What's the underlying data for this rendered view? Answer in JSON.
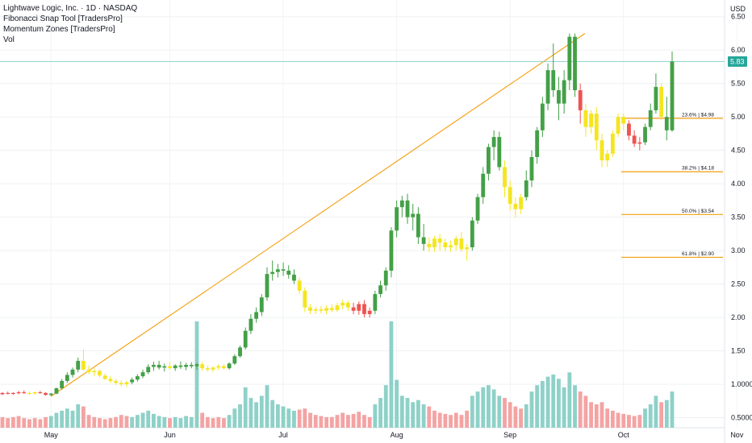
{
  "header": {
    "title": "Lightwave Logic, Inc. · 1D · NASDAQ",
    "indicators": [
      "Fibonacci Snap Tool [TradersPro]",
      "Momentum Zones [TradersPro]",
      "Vol"
    ]
  },
  "price_axis": {
    "currency": "USD"
  },
  "chart_data": {
    "type": "candlestick",
    "x_ticks": [
      "May",
      "Jun",
      "Jul",
      "Aug",
      "Sep",
      "Oct",
      "Nov"
    ],
    "y_ticks": [
      "6.50",
      "6.00",
      "5.50",
      "5.00",
      "4.50",
      "4.00",
      "3.50",
      "3.00",
      "2.50",
      "2.00",
      "1.50",
      "1.0000",
      "0.5000"
    ],
    "ylim": [
      0.35,
      6.75
    ],
    "last_price": "5.83",
    "fib_levels": [
      {
        "label": "23.6% | $4.98",
        "price": 4.98
      },
      {
        "label": "38.2% | $4.18",
        "price": 4.18
      },
      {
        "label": "50.0% | $3.54",
        "price": 3.54
      },
      {
        "label": "61.8% | $2.90",
        "price": 2.9
      }
    ],
    "trendline": {
      "from_price": 0.82,
      "to_price": 6.25
    },
    "candles": [
      [
        0.85,
        0.88,
        0.84,
        0.87,
        "r",
        0.1
      ],
      [
        0.87,
        0.89,
        0.85,
        0.86,
        "r",
        0.09
      ],
      [
        0.86,
        0.88,
        0.84,
        0.87,
        "r",
        0.1
      ],
      [
        0.87,
        0.9,
        0.85,
        0.88,
        "r",
        0.11
      ],
      [
        0.88,
        0.91,
        0.86,
        0.87,
        "r",
        0.09
      ],
      [
        0.87,
        0.89,
        0.84,
        0.86,
        "y",
        0.08
      ],
      [
        0.86,
        0.89,
        0.85,
        0.88,
        "y",
        0.09
      ],
      [
        0.88,
        0.9,
        0.86,
        0.87,
        "r",
        0.08
      ],
      [
        0.87,
        0.88,
        0.83,
        0.84,
        "r",
        0.1
      ],
      [
        0.84,
        0.87,
        0.82,
        0.86,
        "g",
        0.11
      ],
      [
        0.86,
        0.95,
        0.85,
        0.94,
        "g",
        0.14
      ],
      [
        0.94,
        1.08,
        0.92,
        1.05,
        "g",
        0.16
      ],
      [
        1.05,
        1.18,
        1.02,
        1.14,
        "g",
        0.18
      ],
      [
        1.14,
        1.25,
        1.1,
        1.22,
        "g",
        0.16
      ],
      [
        1.22,
        1.4,
        1.18,
        1.35,
        "g",
        0.22
      ],
      [
        1.35,
        1.52,
        1.2,
        1.22,
        "y",
        0.2
      ],
      [
        1.22,
        1.28,
        1.15,
        1.18,
        "y",
        0.12
      ],
      [
        1.18,
        1.24,
        1.12,
        1.2,
        "y",
        0.1
      ],
      [
        1.2,
        1.22,
        1.1,
        1.13,
        "y",
        0.09
      ],
      [
        1.13,
        1.16,
        1.06,
        1.08,
        "y",
        0.08
      ],
      [
        1.08,
        1.12,
        1.02,
        1.05,
        "y",
        0.09
      ],
      [
        1.05,
        1.08,
        0.99,
        1.02,
        "y",
        0.1
      ],
      [
        1.02,
        1.06,
        0.97,
        1.0,
        "y",
        0.12
      ],
      [
        1.0,
        1.05,
        0.96,
        1.03,
        "y",
        0.11
      ],
      [
        1.03,
        1.1,
        1.0,
        1.07,
        "g",
        0.1
      ],
      [
        1.07,
        1.15,
        1.04,
        1.12,
        "g",
        0.12
      ],
      [
        1.12,
        1.22,
        1.09,
        1.18,
        "g",
        0.14
      ],
      [
        1.18,
        1.3,
        1.15,
        1.26,
        "g",
        0.16
      ],
      [
        1.26,
        1.34,
        1.2,
        1.29,
        "g",
        0.13
      ],
      [
        1.29,
        1.35,
        1.22,
        1.25,
        "g",
        0.11
      ],
      [
        1.25,
        1.31,
        1.19,
        1.27,
        "g",
        0.1
      ],
      [
        1.27,
        1.33,
        1.22,
        1.24,
        "y",
        0.09
      ],
      [
        1.24,
        1.3,
        1.2,
        1.28,
        "g",
        0.1
      ],
      [
        1.28,
        1.34,
        1.23,
        1.26,
        "g",
        0.09
      ],
      [
        1.26,
        1.32,
        1.21,
        1.29,
        "g",
        0.11
      ],
      [
        1.29,
        1.33,
        1.24,
        1.27,
        "g",
        0.1
      ],
      [
        1.27,
        1.32,
        1.22,
        1.3,
        "g",
        1.0
      ],
      [
        1.3,
        1.34,
        1.2,
        1.24,
        "y",
        0.14
      ],
      [
        1.24,
        1.28,
        1.19,
        1.22,
        "y",
        0.1
      ],
      [
        1.22,
        1.27,
        1.18,
        1.25,
        "y",
        0.09
      ],
      [
        1.25,
        1.3,
        1.21,
        1.27,
        "y",
        0.1
      ],
      [
        1.27,
        1.3,
        1.22,
        1.24,
        "y",
        0.09
      ],
      [
        1.24,
        1.33,
        1.22,
        1.31,
        "g",
        0.12
      ],
      [
        1.31,
        1.45,
        1.29,
        1.42,
        "g",
        0.18
      ],
      [
        1.42,
        1.58,
        1.4,
        1.55,
        "g",
        0.22
      ],
      [
        1.55,
        1.85,
        1.52,
        1.8,
        "g",
        0.38
      ],
      [
        1.8,
        2.05,
        1.75,
        1.98,
        "g",
        0.28
      ],
      [
        1.98,
        2.15,
        1.92,
        2.08,
        "g",
        0.24
      ],
      [
        2.08,
        2.35,
        2.02,
        2.3,
        "g",
        0.3
      ],
      [
        2.3,
        2.75,
        2.25,
        2.65,
        "g",
        0.4
      ],
      [
        2.65,
        2.85,
        2.55,
        2.68,
        "g",
        0.26
      ],
      [
        2.68,
        2.8,
        2.6,
        2.72,
        "g",
        0.22
      ],
      [
        2.72,
        2.82,
        2.62,
        2.7,
        "g",
        0.2
      ],
      [
        2.7,
        2.78,
        2.58,
        2.64,
        "g",
        0.18
      ],
      [
        2.64,
        2.72,
        2.5,
        2.55,
        "g",
        0.16
      ],
      [
        2.55,
        2.6,
        2.35,
        2.4,
        "y",
        0.17
      ],
      [
        2.4,
        2.45,
        2.08,
        2.15,
        "y",
        0.18
      ],
      [
        2.15,
        2.2,
        2.05,
        2.1,
        "y",
        0.14
      ],
      [
        2.1,
        2.16,
        2.05,
        2.12,
        "y",
        0.12
      ],
      [
        2.12,
        2.17,
        2.06,
        2.1,
        "y",
        0.11
      ],
      [
        2.1,
        2.18,
        2.05,
        2.14,
        "y",
        0.1
      ],
      [
        2.14,
        2.2,
        2.08,
        2.11,
        "y",
        0.1
      ],
      [
        2.11,
        2.22,
        2.08,
        2.18,
        "y",
        0.12
      ],
      [
        2.18,
        2.26,
        2.12,
        2.22,
        "y",
        0.14
      ],
      [
        2.22,
        2.25,
        2.1,
        2.15,
        "y",
        0.12
      ],
      [
        2.15,
        2.22,
        2.05,
        2.1,
        "r",
        0.13
      ],
      [
        2.1,
        2.24,
        2.04,
        2.2,
        "r",
        0.15
      ],
      [
        2.2,
        2.26,
        2.0,
        2.05,
        "r",
        0.12
      ],
      [
        2.05,
        2.15,
        2.0,
        2.1,
        "r",
        0.1
      ],
      [
        2.1,
        2.4,
        2.05,
        2.35,
        "g",
        0.22
      ],
      [
        2.35,
        2.55,
        2.3,
        2.48,
        "g",
        0.28
      ],
      [
        2.48,
        2.75,
        2.4,
        2.7,
        "g",
        0.4
      ],
      [
        2.7,
        3.35,
        2.6,
        3.3,
        "g",
        1.0
      ],
      [
        3.3,
        3.75,
        3.2,
        3.65,
        "g",
        0.45
      ],
      [
        3.65,
        3.82,
        3.5,
        3.75,
        "g",
        0.3
      ],
      [
        3.75,
        3.85,
        3.4,
        3.5,
        "g",
        0.28
      ],
      [
        3.5,
        3.7,
        3.3,
        3.55,
        "g",
        0.24
      ],
      [
        3.55,
        3.65,
        3.1,
        3.2,
        "g",
        0.26
      ],
      [
        3.2,
        3.4,
        3.0,
        3.1,
        "g",
        0.22
      ],
      [
        3.1,
        3.2,
        2.98,
        3.05,
        "y",
        0.2
      ],
      [
        3.05,
        3.22,
        2.98,
        3.18,
        "y",
        0.16
      ],
      [
        3.18,
        3.25,
        3.0,
        3.12,
        "y",
        0.14
      ],
      [
        3.12,
        3.18,
        2.99,
        3.05,
        "y",
        0.13
      ],
      [
        3.05,
        3.15,
        2.98,
        3.08,
        "y",
        0.12
      ],
      [
        3.08,
        3.22,
        3.0,
        3.18,
        "y",
        0.14
      ],
      [
        3.18,
        3.28,
        2.98,
        3.02,
        "y",
        0.12
      ],
      [
        3.02,
        3.1,
        2.85,
        3.05,
        "y",
        0.16
      ],
      [
        3.05,
        3.5,
        3.0,
        3.45,
        "g",
        0.3
      ],
      [
        3.45,
        3.85,
        3.4,
        3.8,
        "g",
        0.34
      ],
      [
        3.8,
        4.25,
        3.7,
        4.15,
        "g",
        0.38
      ],
      [
        4.15,
        4.6,
        4.05,
        4.55,
        "g",
        0.4
      ],
      [
        4.55,
        4.8,
        4.35,
        4.7,
        "g",
        0.36
      ],
      [
        4.7,
        4.78,
        4.2,
        4.25,
        "g",
        0.3
      ],
      [
        4.25,
        4.35,
        3.8,
        3.95,
        "y",
        0.28
      ],
      [
        3.95,
        4.05,
        3.6,
        3.7,
        "y",
        0.24
      ],
      [
        3.7,
        3.8,
        3.5,
        3.62,
        "y",
        0.2
      ],
      [
        3.62,
        3.85,
        3.55,
        3.8,
        "y",
        0.18
      ],
      [
        3.8,
        4.2,
        3.75,
        4.05,
        "g",
        0.22
      ],
      [
        4.05,
        4.5,
        3.95,
        4.4,
        "g",
        0.34
      ],
      [
        4.4,
        4.85,
        4.3,
        4.8,
        "g",
        0.4
      ],
      [
        4.8,
        5.3,
        4.7,
        5.2,
        "g",
        0.44
      ],
      [
        5.2,
        5.8,
        5.1,
        5.7,
        "g",
        0.48
      ],
      [
        5.7,
        6.1,
        5.3,
        5.4,
        "g",
        0.5
      ],
      [
        5.4,
        5.6,
        4.95,
        5.2,
        "g",
        0.46
      ],
      [
        5.2,
        5.7,
        5.05,
        5.55,
        "g",
        0.38
      ],
      [
        5.55,
        6.25,
        5.4,
        6.2,
        "g",
        0.52
      ],
      [
        6.2,
        6.25,
        5.3,
        5.4,
        "g",
        0.4
      ],
      [
        5.4,
        5.5,
        4.9,
        5.1,
        "r",
        0.34
      ],
      [
        5.1,
        5.2,
        4.7,
        4.85,
        "y",
        0.3
      ],
      [
        4.85,
        5.1,
        4.75,
        5.05,
        "y",
        0.24
      ],
      [
        5.05,
        5.15,
        4.5,
        4.65,
        "y",
        0.22
      ],
      [
        4.65,
        4.75,
        4.25,
        4.35,
        "y",
        0.24
      ],
      [
        4.35,
        4.5,
        4.25,
        4.45,
        "y",
        0.18
      ],
      [
        4.45,
        4.8,
        4.4,
        4.75,
        "y",
        0.16
      ],
      [
        4.75,
        5.05,
        4.7,
        5.0,
        "y",
        0.14
      ],
      [
        5.0,
        5.05,
        4.8,
        4.9,
        "y",
        0.13
      ],
      [
        4.9,
        4.95,
        4.65,
        4.72,
        "r",
        0.12
      ],
      [
        4.72,
        4.8,
        4.55,
        4.6,
        "r",
        0.11
      ],
      [
        4.6,
        4.7,
        4.5,
        4.62,
        "r",
        0.12
      ],
      [
        4.62,
        4.9,
        4.58,
        4.85,
        "g",
        0.18
      ],
      [
        4.85,
        5.2,
        4.8,
        5.1,
        "g",
        0.22
      ],
      [
        5.1,
        5.65,
        5.05,
        5.45,
        "g",
        0.3
      ],
      [
        5.45,
        5.5,
        4.95,
        5.0,
        "y",
        0.24
      ],
      [
        5.0,
        5.3,
        4.65,
        4.8,
        "g",
        0.26
      ],
      [
        4.8,
        5.98,
        4.78,
        5.83,
        "g",
        0.34
      ]
    ]
  }
}
